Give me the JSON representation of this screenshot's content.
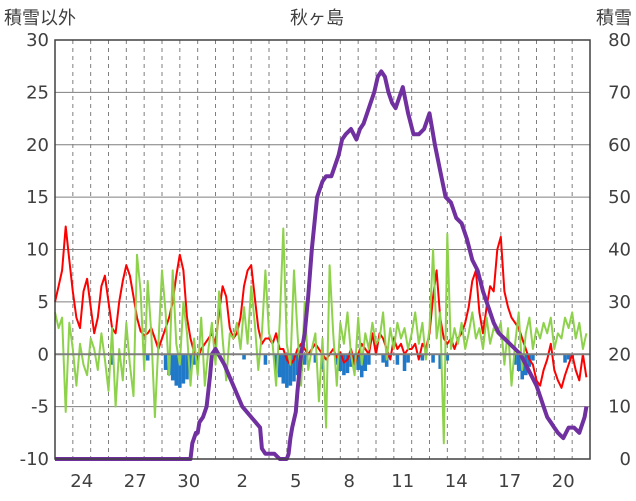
{
  "chart_data": {
    "type": "line",
    "title": "秋ヶ島",
    "ylabel_left": "積雪以外",
    "ylabel_right": "積雪",
    "ylim_left": [
      -10,
      30
    ],
    "ylim_right": [
      0,
      80
    ],
    "yticks_left": [
      -10,
      -5,
      0,
      5,
      10,
      15,
      20,
      25,
      30
    ],
    "yticks_right": [
      0,
      10,
      20,
      30,
      40,
      50,
      60,
      70,
      80
    ],
    "xlim": [
      0,
      30
    ],
    "xtick_labels": [
      {
        "x": 1.5,
        "label": "24"
      },
      {
        "x": 4.5,
        "label": "27"
      },
      {
        "x": 7.5,
        "label": "30"
      },
      {
        "x": 10.5,
        "label": "2"
      },
      {
        "x": 13.5,
        "label": "5"
      },
      {
        "x": 16.5,
        "label": "8"
      },
      {
        "x": 19.5,
        "label": "11"
      },
      {
        "x": 22.5,
        "label": "14"
      },
      {
        "x": 25.5,
        "label": "17"
      },
      {
        "x": 28.5,
        "label": "20"
      }
    ],
    "grid": true,
    "series": [
      {
        "key": "precip",
        "type": "bar",
        "axis": "left",
        "color": "#1f78c8",
        "x": [
          3.2,
          5.2,
          6.2,
          6.4,
          6.6,
          6.8,
          7.0,
          7.2,
          7.4,
          7.6,
          7.8,
          8.0,
          10.6,
          11.8,
          12.4,
          12.6,
          12.8,
          13.0,
          13.2,
          13.4,
          13.6,
          13.8,
          14.0,
          14.6,
          15.0,
          15.8,
          16.0,
          16.2,
          16.4,
          16.6,
          16.8,
          17.0,
          17.2,
          17.4,
          17.6,
          18.4,
          18.6,
          19.2,
          19.6,
          19.8,
          20.6,
          21.2,
          21.6,
          22.0,
          25.8,
          26.0,
          26.2,
          26.4,
          26.6,
          26.8,
          28.6,
          28.8,
          29.0
        ],
        "values": [
          -1.0,
          -0.6,
          -1.5,
          -2.0,
          -2.5,
          -3.0,
          -3.2,
          -2.8,
          -2.4,
          -1.8,
          -1.0,
          -0.6,
          -0.5,
          -1.0,
          -1.8,
          -2.2,
          -2.8,
          -3.2,
          -3.0,
          -2.6,
          -2.0,
          -1.6,
          -1.0,
          -0.8,
          -1.4,
          -1.0,
          -1.6,
          -2.0,
          -1.8,
          -1.2,
          -0.8,
          -1.5,
          -2.2,
          -1.6,
          -1.0,
          -0.8,
          -1.2,
          -1.0,
          -1.6,
          -0.8,
          -0.6,
          -0.8,
          -1.4,
          -0.6,
          -1.0,
          -1.6,
          -2.4,
          -2.0,
          -1.2,
          -0.6,
          -0.8,
          -0.5,
          -0.3
        ]
      },
      {
        "key": "temperature",
        "type": "line",
        "axis": "left",
        "color": "#ff0000",
        "x": [
          0.0,
          0.2,
          0.4,
          0.6,
          0.8,
          1.0,
          1.2,
          1.4,
          1.6,
          1.8,
          2.0,
          2.2,
          2.4,
          2.6,
          2.8,
          3.0,
          3.2,
          3.4,
          3.6,
          3.8,
          4.0,
          4.2,
          4.4,
          4.6,
          4.8,
          5.0,
          5.2,
          5.4,
          5.6,
          5.8,
          6.0,
          6.2,
          6.4,
          6.6,
          6.8,
          7.0,
          7.2,
          7.4,
          7.6,
          7.8,
          8.0,
          8.2,
          8.4,
          8.6,
          8.8,
          9.0,
          9.2,
          9.4,
          9.6,
          9.8,
          10.0,
          10.2,
          10.4,
          10.6,
          10.8,
          11.0,
          11.2,
          11.4,
          11.6,
          11.8,
          12.0,
          12.2,
          12.4,
          12.6,
          12.8,
          13.0,
          13.2,
          13.4,
          13.6,
          13.8,
          14.0,
          14.2,
          14.4,
          14.6,
          14.8,
          15.0,
          15.2,
          15.4,
          15.6,
          15.8,
          16.0,
          16.2,
          16.4,
          16.6,
          16.8,
          17.0,
          17.2,
          17.4,
          17.6,
          17.8,
          18.0,
          18.2,
          18.4,
          18.6,
          18.8,
          19.0,
          19.2,
          19.4,
          19.6,
          19.8,
          20.0,
          20.2,
          20.4,
          20.6,
          20.8,
          21.0,
          21.2,
          21.4,
          21.6,
          21.8,
          22.0,
          22.2,
          22.4,
          22.6,
          22.8,
          23.0,
          23.2,
          23.4,
          23.6,
          23.8,
          24.0,
          24.2,
          24.4,
          24.6,
          24.8,
          25.0,
          25.2,
          25.4,
          25.6,
          25.8,
          26.0,
          26.2,
          26.4,
          26.6,
          26.8,
          27.0,
          27.2,
          27.4,
          27.6,
          27.8,
          28.0,
          28.2,
          28.4,
          28.6,
          28.8,
          29.0,
          29.2,
          29.4,
          29.6,
          29.8
        ],
        "values": [
          5.0,
          6.5,
          8.0,
          12.2,
          9.0,
          6.0,
          3.5,
          2.5,
          6.0,
          7.2,
          4.5,
          2.0,
          3.5,
          6.5,
          7.5,
          5.0,
          2.5,
          2.0,
          5.0,
          7.0,
          8.5,
          7.5,
          5.5,
          3.5,
          2.2,
          1.8,
          2.0,
          2.5,
          1.5,
          0.5,
          1.5,
          2.5,
          3.5,
          5.0,
          7.5,
          9.5,
          8.0,
          3.5,
          1.5,
          0.2,
          -0.5,
          0.5,
          1.0,
          1.5,
          2.0,
          1.0,
          4.0,
          6.5,
          5.5,
          2.5,
          1.5,
          2.0,
          3.5,
          6.5,
          8.0,
          8.5,
          5.5,
          2.5,
          1.0,
          1.5,
          1.5,
          1.0,
          2.0,
          0.5,
          0.5,
          -0.5,
          -1.0,
          -0.5,
          0.5,
          1.0,
          0.5,
          0.0,
          0.5,
          1.0,
          0.5,
          0.0,
          -0.5,
          0.0,
          0.5,
          -0.3,
          0.2,
          -0.8,
          -0.5,
          0.5,
          -1.0,
          0.0,
          1.0,
          0.5,
          0.0,
          2.0,
          0.0,
          2.0,
          1.5,
          0.5,
          -0.5,
          1.5,
          0.5,
          1.0,
          0.0,
          0.5,
          0.5,
          1.0,
          -0.5,
          1.0,
          0.5,
          2.0,
          5.5,
          8.0,
          3.5,
          1.5,
          1.0,
          1.5,
          0.5,
          1.5,
          2.0,
          3.0,
          4.5,
          7.0,
          8.0,
          4.0,
          2.0,
          4.5,
          6.5,
          6.0,
          10.0,
          11.2,
          6.0,
          4.5,
          3.5,
          3.0,
          2.5,
          1.5,
          0.5,
          -0.5,
          -1.0,
          -2.5,
          -3.0,
          -1.5,
          -0.5,
          1.0,
          -1.5,
          -2.5,
          -3.2,
          -2.0,
          -1.0,
          0.0,
          -1.5,
          -2.5,
          0.0,
          -2.2
        ]
      },
      {
        "key": "wind",
        "type": "line",
        "axis": "left",
        "color": "#8ed24c",
        "x": [
          0.0,
          0.2,
          0.4,
          0.6,
          0.8,
          1.0,
          1.2,
          1.4,
          1.6,
          1.8,
          2.0,
          2.2,
          2.4,
          2.6,
          2.8,
          3.0,
          3.2,
          3.4,
          3.6,
          3.8,
          4.0,
          4.2,
          4.4,
          4.6,
          4.8,
          5.0,
          5.2,
          5.4,
          5.6,
          5.8,
          6.0,
          6.2,
          6.4,
          6.6,
          6.8,
          7.0,
          7.2,
          7.4,
          7.6,
          7.8,
          8.0,
          8.2,
          8.4,
          8.6,
          8.8,
          9.0,
          9.2,
          9.4,
          9.6,
          9.8,
          10.0,
          10.2,
          10.4,
          10.6,
          10.8,
          11.0,
          11.2,
          11.4,
          11.6,
          11.8,
          12.0,
          12.2,
          12.4,
          12.6,
          12.8,
          13.0,
          13.2,
          13.4,
          13.6,
          13.8,
          14.0,
          14.2,
          14.4,
          14.6,
          14.8,
          15.0,
          15.2,
          15.4,
          15.6,
          15.8,
          16.0,
          16.2,
          16.4,
          16.6,
          16.8,
          17.0,
          17.2,
          17.4,
          17.6,
          17.8,
          18.0,
          18.2,
          18.4,
          18.6,
          18.8,
          19.0,
          19.2,
          19.4,
          19.6,
          19.8,
          20.0,
          20.2,
          20.4,
          20.6,
          20.8,
          21.0,
          21.2,
          21.4,
          21.6,
          21.8,
          22.0,
          22.2,
          22.4,
          22.6,
          22.8,
          23.0,
          23.2,
          23.4,
          23.6,
          23.8,
          24.0,
          24.2,
          24.4,
          24.6,
          24.8,
          25.0,
          25.2,
          25.4,
          25.6,
          25.8,
          26.0,
          26.2,
          26.4,
          26.6,
          26.8,
          27.0,
          27.2,
          27.4,
          27.6,
          27.8,
          28.0,
          28.2,
          28.4,
          28.6,
          28.8,
          29.0,
          29.2,
          29.4,
          29.6,
          29.8
        ],
        "values": [
          4.0,
          2.5,
          3.5,
          -5.5,
          3.0,
          0.5,
          -3.0,
          1.0,
          -1.0,
          -2.0,
          1.5,
          0.5,
          -1.5,
          2.0,
          -0.5,
          -3.5,
          2.5,
          -5.0,
          0.5,
          -2.5,
          3.0,
          -1.0,
          -4.0,
          9.5,
          6.0,
          -1.5,
          7.0,
          2.0,
          -6.0,
          1.0,
          8.0,
          4.0,
          -2.0,
          8.0,
          1.0,
          -1.0,
          5.0,
          2.0,
          -3.0,
          1.5,
          -2.0,
          3.5,
          -3.0,
          0.5,
          3.0,
          -1.0,
          6.0,
          1.5,
          -2.5,
          2.0,
          1.5,
          3.0,
          0.5,
          4.5,
          1.0,
          6.5,
          3.0,
          -1.5,
          2.0,
          8.0,
          2.0,
          1.0,
          -3.0,
          3.0,
          12.0,
          1.0,
          -1.0,
          8.0,
          2.0,
          -3.0,
          5.0,
          -1.5,
          0.5,
          2.0,
          -4.5,
          1.5,
          -7.0,
          8.5,
          2.0,
          -3.0,
          3.0,
          1.0,
          4.0,
          0.0,
          -2.0,
          3.5,
          -1.0,
          2.0,
          0.5,
          3.0,
          1.0,
          1.5,
          4.0,
          -0.5,
          2.5,
          0.5,
          3.0,
          1.5,
          2.5,
          0.5,
          2.0,
          4.0,
          1.0,
          3.0,
          -0.5,
          2.5,
          10.0,
          1.5,
          4.0,
          -8.5,
          11.5,
          0.5,
          2.5,
          1.0,
          3.0,
          0.5,
          2.0,
          4.0,
          1.5,
          2.5,
          0.5,
          3.5,
          1.0,
          2.5,
          2.0,
          3.0,
          -1.0,
          2.5,
          -3.0,
          1.0,
          4.0,
          -1.5,
          2.0,
          3.5,
          0.5,
          2.5,
          1.5,
          3.0,
          2.0,
          3.5,
          0.5,
          2.0,
          1.5,
          3.5,
          2.5,
          4.0,
          1.5,
          3.0,
          0.5,
          2.0
        ]
      },
      {
        "key": "snow",
        "type": "line",
        "axis": "right",
        "color": "#7030a0",
        "x": [
          0.0,
          6.0,
          6.9,
          7.1,
          7.6,
          7.7,
          7.9,
          8.0,
          8.1,
          8.3,
          8.5,
          8.7,
          8.8,
          9.0,
          9.5,
          10.5,
          11.5,
          11.6,
          11.8,
          12.0,
          12.3,
          12.6,
          12.8,
          13.0,
          13.1,
          13.2,
          13.3,
          13.5,
          13.6,
          13.8,
          14.0,
          14.2,
          14.4,
          14.7,
          15.0,
          15.2,
          15.5,
          15.7,
          15.9,
          16.1,
          16.3,
          16.6,
          16.9,
          17.1,
          17.3,
          17.5,
          17.7,
          17.9,
          18.1,
          18.3,
          18.5,
          18.7,
          18.9,
          19.1,
          19.3,
          19.5,
          19.8,
          20.1,
          20.4,
          20.7,
          21.0,
          21.3,
          21.6,
          21.9,
          22.2,
          22.5,
          22.8,
          23.1,
          23.4,
          23.7,
          24.0,
          24.3,
          24.6,
          24.9,
          25.2,
          25.5,
          25.8,
          26.1,
          26.4,
          26.7,
          27.0,
          27.2,
          27.4,
          27.6,
          27.8,
          28.0,
          28.2,
          28.5,
          28.8,
          29.1,
          29.4,
          29.7,
          29.8
        ],
        "values": [
          0,
          0,
          0,
          0,
          0,
          3,
          5,
          5,
          7,
          8,
          10,
          16,
          20,
          21,
          18,
          10,
          6,
          2,
          1,
          1,
          1,
          0,
          0,
          0,
          1,
          4,
          6,
          9,
          13,
          20,
          24,
          31,
          40,
          50,
          53,
          54,
          54,
          56,
          58,
          61,
          62,
          63,
          61,
          63,
          64,
          66,
          68,
          70,
          73,
          74,
          73,
          70,
          68,
          67,
          69,
          71,
          66,
          62,
          62,
          63,
          66,
          60,
          55,
          50,
          49,
          46,
          45,
          42,
          38,
          36,
          32,
          29,
          26,
          24,
          23,
          22,
          21,
          20,
          18,
          16,
          14,
          12,
          10,
          8,
          7,
          6,
          5,
          4,
          6,
          6,
          5,
          8,
          10
        ]
      }
    ]
  }
}
